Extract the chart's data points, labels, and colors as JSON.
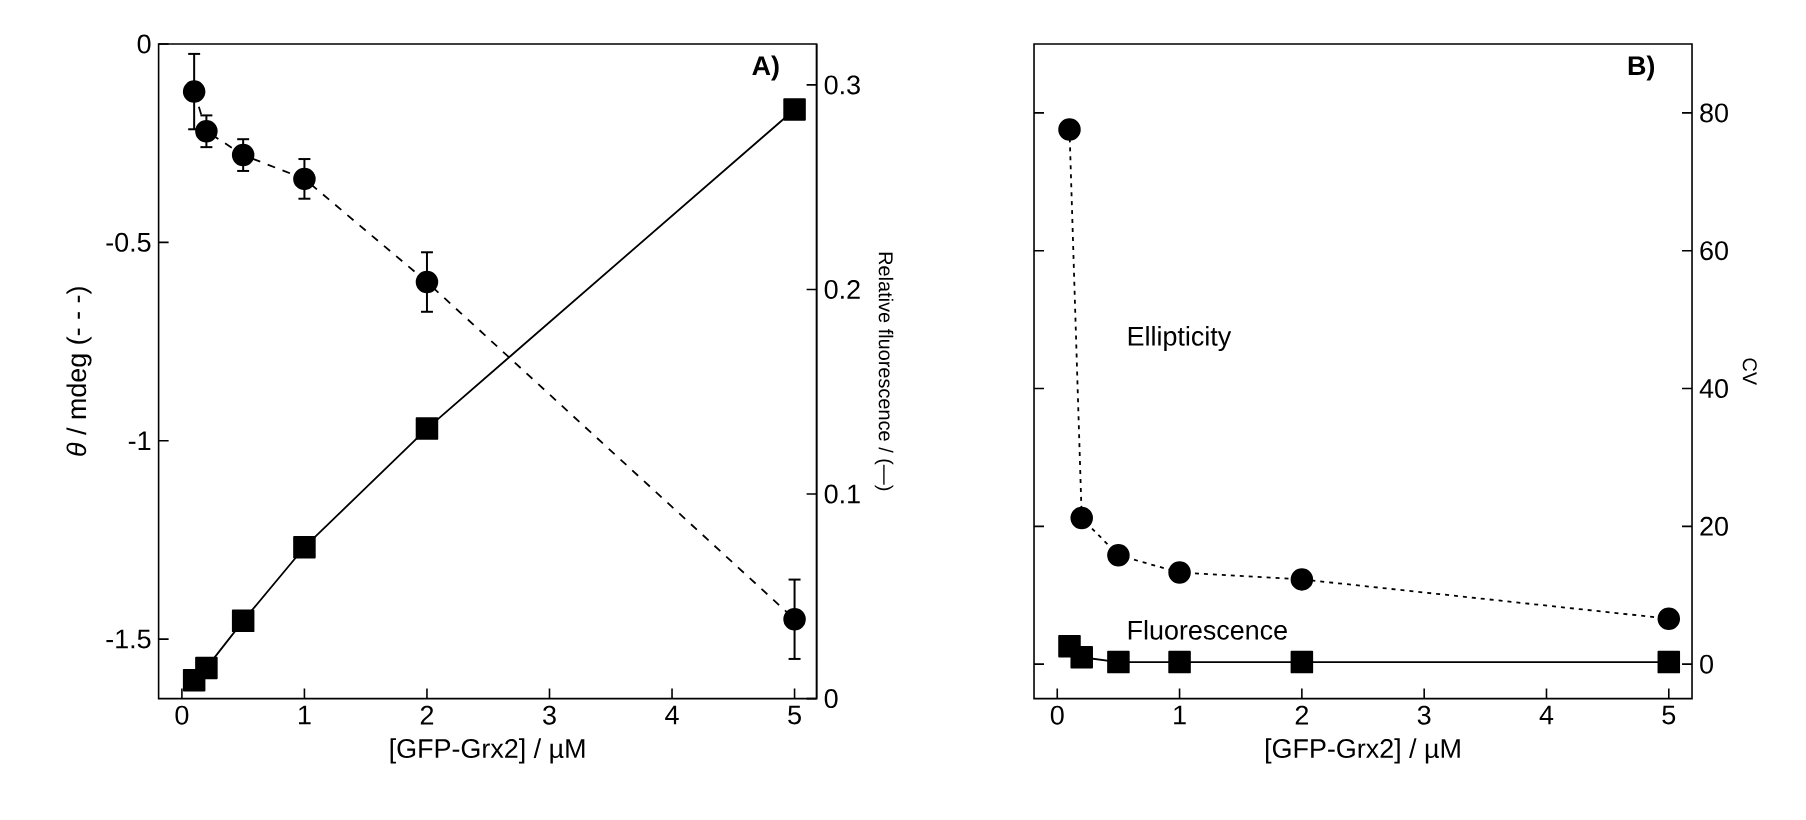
{
  "chart_data": [
    {
      "type": "line",
      "title": "A)",
      "xlabel": "[GFP-Grx2] / µM",
      "ylabel": "*θ* / mdeg (- - -)",
      "y2label": "Relative fluorescence / (—)",
      "xlim": [
        -0.19,
        5.18
      ],
      "xticks": [
        0,
        1,
        2,
        3,
        4,
        5
      ],
      "ylim": [
        -1.65,
        0
      ],
      "yticks": [
        -1.5,
        -1,
        -0.5,
        0
      ],
      "y2lim": [
        0,
        0.32
      ],
      "y2ticks": [
        0,
        0.1,
        0.2,
        0.3
      ],
      "x": [
        0.1,
        0.2,
        0.5,
        1,
        2,
        5
      ],
      "series": [
        {
          "color": "#000000",
          "marker": "circle",
          "line_style": "dashed",
          "values": [
            -0.12,
            -0.22,
            -0.28,
            -0.34,
            -0.6,
            -1.45
          ],
          "errors": [
            0.095,
            0.04,
            0.04,
            0.05,
            0.075,
            0.1
          ]
        },
        {
          "color": "#000000",
          "marker": "square",
          "line_style": "solid",
          "axis": "y2",
          "values": [
            0.009,
            0.015,
            0.038,
            0.074,
            0.132,
            0.288
          ]
        }
      ]
    },
    {
      "type": "line",
      "title": "B)",
      "xlabel": "[GFP-Grx2] / µM",
      "y2label": "CV",
      "xlim": [
        -0.19,
        5.19
      ],
      "xticks": [
        0,
        1,
        2,
        3,
        4,
        5
      ],
      "y2lim": [
        -5,
        90
      ],
      "y2ticks": [
        0,
        20,
        40,
        60,
        80
      ],
      "x": [
        0.1,
        0.2,
        0.5,
        1,
        2,
        5
      ],
      "series": [
        {
          "name": "Ellipticity",
          "color": "#000000",
          "marker": "circle",
          "line_style": "dotted",
          "axis": "y2",
          "values": [
            77.6,
            21.2,
            15.8,
            13.3,
            12.3,
            6.6
          ]
        },
        {
          "name": "Fluorescence",
          "color": "#000000",
          "marker": "square",
          "line_style": "solid",
          "axis": "y2",
          "values": [
            2.6,
            1,
            0.3,
            0.3,
            0.3,
            0.3
          ]
        }
      ]
    }
  ]
}
